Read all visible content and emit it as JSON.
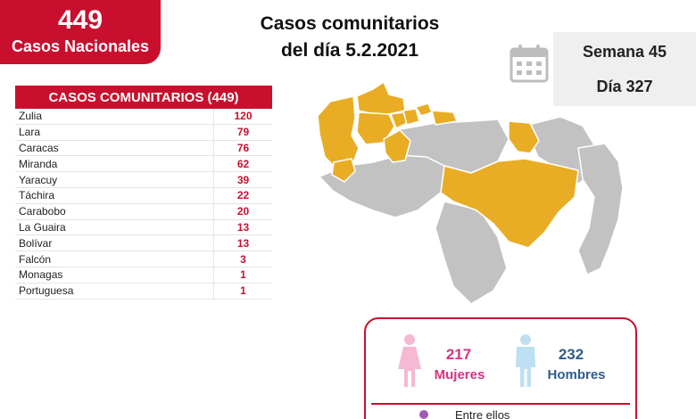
{
  "national": {
    "count": "449",
    "label": "Casos Nacionales"
  },
  "title": {
    "line1": "Casos comunitarios",
    "line2": "del día 5.2.2021"
  },
  "week": "Semana 45",
  "day": "Día 327",
  "table": {
    "header": "CASOS COMUNITARIOS (449)",
    "rows": [
      {
        "state": "Zulia",
        "count": "120"
      },
      {
        "state": "Lara",
        "count": "79"
      },
      {
        "state": "Caracas",
        "count": "76"
      },
      {
        "state": "Miranda",
        "count": "62"
      },
      {
        "state": "Yaracuy",
        "count": "39"
      },
      {
        "state": "Táchira",
        "count": "22"
      },
      {
        "state": "Carabobo",
        "count": "20"
      },
      {
        "state": "La Guaira",
        "count": "13"
      },
      {
        "state": "Bolívar",
        "count": "13"
      },
      {
        "state": "Falcón",
        "count": "3"
      },
      {
        "state": "Monagas",
        "count": "1"
      },
      {
        "state": "Portuguesa",
        "count": "1"
      }
    ]
  },
  "gender": {
    "female_count": "217",
    "female_label": "Mujeres",
    "male_count": "232",
    "male_label": "Hombres",
    "note": "Entre ellos"
  },
  "colors": {
    "accent": "#c8102e",
    "highlight_state": "#e8ad24",
    "other_state": "#c2c2c2",
    "female": "#d63384",
    "male": "#2f5d8a"
  },
  "icons": {
    "calendar": "calendar-icon",
    "female": "female-person-icon",
    "male": "male-person-icon"
  }
}
